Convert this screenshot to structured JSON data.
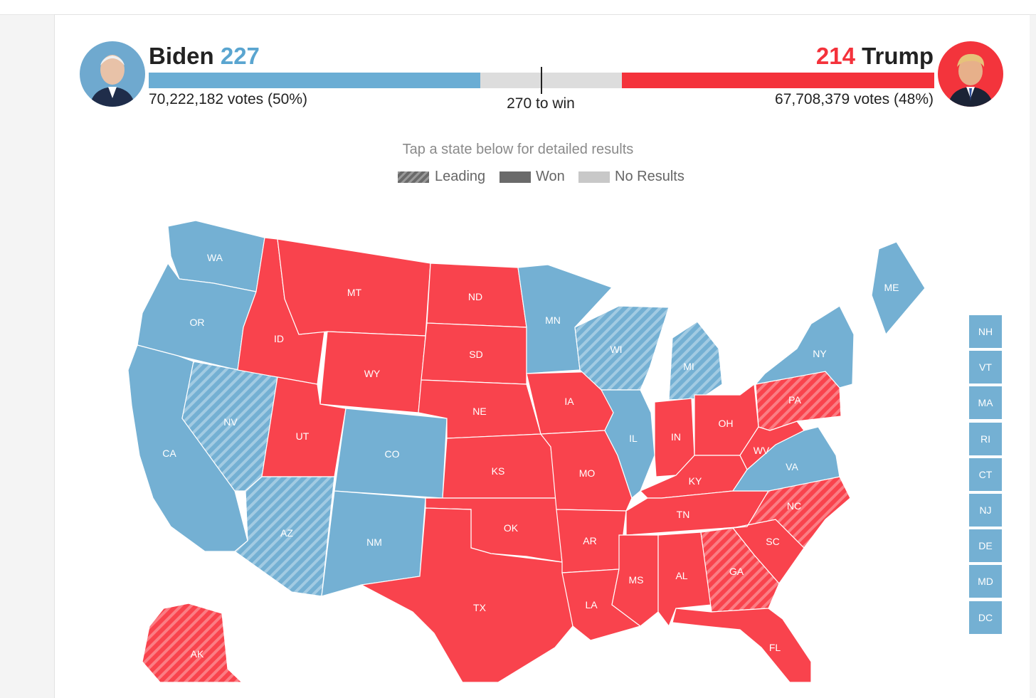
{
  "header": {
    "dem": {
      "name": "Biden",
      "electoral": "227",
      "votes": "70,222,182 votes (50%)"
    },
    "rep": {
      "name": "Trump",
      "electoral": "214",
      "votes": "67,708,379 votes (48%)"
    },
    "to_win": "270 to win"
  },
  "progress": {
    "dem_electoral": 227,
    "rep_electoral": 214,
    "total": 538,
    "to_win": 270
  },
  "colors": {
    "dem": "#74b0d3",
    "rep": "#f9434d",
    "rep_header": "#f4323b",
    "dem_header": "#5aa5d0",
    "none": "#dddddd"
  },
  "map": {
    "hint": "Tap a state below for detailed results",
    "legend": {
      "leading": "Leading",
      "won": "Won",
      "no_results": "No Results"
    },
    "states": [
      {
        "abbr": "WA",
        "party": "dem",
        "status": "won"
      },
      {
        "abbr": "OR",
        "party": "dem",
        "status": "won"
      },
      {
        "abbr": "CA",
        "party": "dem",
        "status": "won"
      },
      {
        "abbr": "NV",
        "party": "dem",
        "status": "leading"
      },
      {
        "abbr": "ID",
        "party": "rep",
        "status": "won"
      },
      {
        "abbr": "MT",
        "party": "rep",
        "status": "won"
      },
      {
        "abbr": "WY",
        "party": "rep",
        "status": "won"
      },
      {
        "abbr": "UT",
        "party": "rep",
        "status": "won"
      },
      {
        "abbr": "AZ",
        "party": "dem",
        "status": "leading"
      },
      {
        "abbr": "CO",
        "party": "dem",
        "status": "won"
      },
      {
        "abbr": "NM",
        "party": "dem",
        "status": "won"
      },
      {
        "abbr": "ND",
        "party": "rep",
        "status": "won"
      },
      {
        "abbr": "SD",
        "party": "rep",
        "status": "won"
      },
      {
        "abbr": "NE",
        "party": "rep",
        "status": "won"
      },
      {
        "abbr": "KS",
        "party": "rep",
        "status": "won"
      },
      {
        "abbr": "OK",
        "party": "rep",
        "status": "won"
      },
      {
        "abbr": "TX",
        "party": "rep",
        "status": "won"
      },
      {
        "abbr": "MN",
        "party": "dem",
        "status": "won"
      },
      {
        "abbr": "IA",
        "party": "rep",
        "status": "won"
      },
      {
        "abbr": "MO",
        "party": "rep",
        "status": "won"
      },
      {
        "abbr": "AR",
        "party": "rep",
        "status": "won"
      },
      {
        "abbr": "LA",
        "party": "rep",
        "status": "won"
      },
      {
        "abbr": "WI",
        "party": "dem",
        "status": "leading"
      },
      {
        "abbr": "IL",
        "party": "dem",
        "status": "won"
      },
      {
        "abbr": "MI",
        "party": "dem",
        "status": "leading"
      },
      {
        "abbr": "IN",
        "party": "rep",
        "status": "won"
      },
      {
        "abbr": "OH",
        "party": "rep",
        "status": "won"
      },
      {
        "abbr": "KY",
        "party": "rep",
        "status": "won"
      },
      {
        "abbr": "TN",
        "party": "rep",
        "status": "won"
      },
      {
        "abbr": "MS",
        "party": "rep",
        "status": "won"
      },
      {
        "abbr": "AL",
        "party": "rep",
        "status": "won"
      },
      {
        "abbr": "GA",
        "party": "rep",
        "status": "leading"
      },
      {
        "abbr": "FL",
        "party": "rep",
        "status": "won"
      },
      {
        "abbr": "SC",
        "party": "rep",
        "status": "won"
      },
      {
        "abbr": "NC",
        "party": "rep",
        "status": "leading"
      },
      {
        "abbr": "VA",
        "party": "dem",
        "status": "won"
      },
      {
        "abbr": "WV",
        "party": "rep",
        "status": "won"
      },
      {
        "abbr": "PA",
        "party": "rep",
        "status": "leading"
      },
      {
        "abbr": "NY",
        "party": "dem",
        "status": "won"
      },
      {
        "abbr": "ME",
        "party": "dem",
        "status": "won"
      },
      {
        "abbr": "AK",
        "party": "rep",
        "status": "leading"
      }
    ],
    "small_states": [
      {
        "abbr": "NH",
        "party": "dem"
      },
      {
        "abbr": "VT",
        "party": "dem"
      },
      {
        "abbr": "MA",
        "party": "dem"
      },
      {
        "abbr": "RI",
        "party": "dem"
      },
      {
        "abbr": "CT",
        "party": "dem"
      },
      {
        "abbr": "NJ",
        "party": "dem"
      },
      {
        "abbr": "DE",
        "party": "dem"
      },
      {
        "abbr": "MD",
        "party": "dem"
      },
      {
        "abbr": "DC",
        "party": "dem"
      }
    ]
  }
}
